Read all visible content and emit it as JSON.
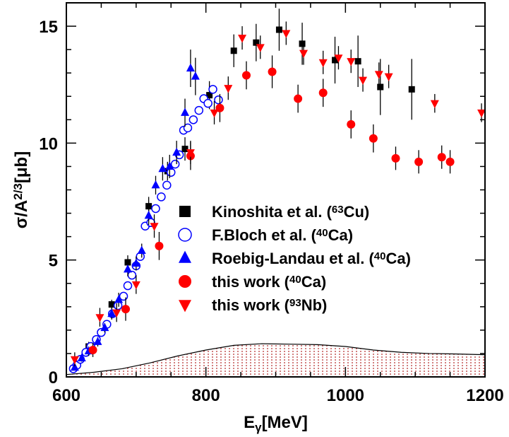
{
  "chart_data": {
    "type": "scatter",
    "title": "",
    "xlabel": "E",
    "xlabel_sub": "γ",
    "xlabel_unit": "[MeV]",
    "ylabel": "σ/A",
    "ylabel_sup": "2/3",
    "ylabel_unit": "[μb]",
    "xlim": [
      600,
      1200
    ],
    "ylim": [
      0,
      16
    ],
    "x_ticks": [
      600,
      800,
      1000,
      1200
    ],
    "y_ticks": [
      0,
      5,
      10,
      15
    ],
    "x_tick_labels": [
      "600",
      "800",
      "1000",
      "1200"
    ],
    "y_tick_labels": [
      "0",
      "5",
      "10",
      "15"
    ],
    "grid": false,
    "legend_position": "center-right",
    "series": [
      {
        "name": "Kinoshita et al. (63Cu)",
        "legend_prefix": "Kinoshita et al. (",
        "legend_sup": "63",
        "legend_suffix": "Cu)",
        "marker": "square-filled",
        "color": "#000000",
        "points": [
          [
            632,
            1.3,
            0.2
          ],
          [
            665,
            3.1,
            0.2
          ],
          [
            688,
            4.9,
            0.3
          ],
          [
            718,
            7.3,
            0.4
          ],
          [
            745,
            8.8,
            0.4
          ],
          [
            770,
            9.75,
            0.5
          ],
          [
            805,
            12.05,
            0.6
          ],
          [
            840,
            13.95,
            0.7
          ],
          [
            872,
            14.3,
            0.8
          ],
          [
            905,
            14.85,
            0.9
          ],
          [
            938,
            14.25,
            0.9
          ],
          [
            985,
            13.55,
            1.0
          ],
          [
            1018,
            13.5,
            1.1
          ],
          [
            1050,
            12.4,
            1.2
          ],
          [
            1095,
            12.3,
            1.3
          ]
        ]
      },
      {
        "name": "F.Bloch et al. (40Ca)",
        "legend_prefix": "F.Bloch et al. (",
        "legend_sup": "40",
        "legend_suffix": "Ca)",
        "marker": "circle-open",
        "color": "#0000ff",
        "points": [
          [
            610,
            0.35,
            0
          ],
          [
            615,
            0.5,
            0
          ],
          [
            620,
            0.75,
            0
          ],
          [
            628,
            1.05,
            0
          ],
          [
            635,
            1.3,
            0
          ],
          [
            643,
            1.6,
            0
          ],
          [
            650,
            1.9,
            0
          ],
          [
            658,
            2.25,
            0
          ],
          [
            666,
            2.7,
            0
          ],
          [
            674,
            3.05,
            0
          ],
          [
            682,
            3.45,
            0
          ],
          [
            688,
            3.9,
            0
          ],
          [
            694,
            4.35,
            0
          ],
          [
            700,
            4.75,
            0
          ],
          [
            706,
            5.15,
            0
          ],
          [
            713,
            6.45,
            0
          ],
          [
            721,
            6.6,
            0
          ],
          [
            728,
            7.2,
            0
          ],
          [
            736,
            7.7,
            0
          ],
          [
            744,
            8.2,
            0
          ],
          [
            750,
            8.75,
            0
          ],
          [
            756,
            9.1,
            0
          ],
          [
            762,
            9.5,
            0
          ],
          [
            768,
            10.55,
            0
          ],
          [
            774,
            10.65,
            0
          ],
          [
            782,
            11.0,
            0
          ],
          [
            790,
            11.4,
            0
          ],
          [
            797,
            11.9,
            0
          ],
          [
            803,
            11.7,
            0
          ],
          [
            810,
            12.3,
            0
          ],
          [
            818,
            11.85,
            0
          ]
        ]
      },
      {
        "name": "Roebig-Landau et al. (40Ca)",
        "legend_prefix": "Roebig-Landau et al. (",
        "legend_sup": "40",
        "legend_suffix": "Ca)",
        "marker": "triangle-up-filled",
        "color": "#0000ff",
        "points": [
          [
            612,
            0.4,
            0.1
          ],
          [
            622,
            0.8,
            0.15
          ],
          [
            632,
            1.1,
            0.2
          ],
          [
            645,
            1.5,
            0.2
          ],
          [
            655,
            2.1,
            0.2
          ],
          [
            665,
            2.7,
            0.25
          ],
          [
            675,
            3.3,
            0.3
          ],
          [
            688,
            4.6,
            0.3
          ],
          [
            700,
            4.85,
            0.3
          ],
          [
            708,
            5.4,
            0.3
          ],
          [
            718,
            6.9,
            0.4
          ],
          [
            728,
            8.2,
            0.4
          ],
          [
            738,
            8.9,
            0.5
          ],
          [
            748,
            9.0,
            0.5
          ],
          [
            758,
            9.6,
            0.5
          ],
          [
            770,
            11.3,
            0.6
          ],
          [
            778,
            13.2,
            0.8
          ],
          [
            785,
            12.85,
            0.8
          ]
        ]
      },
      {
        "name": "this work (40Ca)",
        "legend_prefix": "this work (",
        "legend_sup": "40",
        "legend_suffix": "Ca)",
        "marker": "circle-filled",
        "color": "#ff0000",
        "points": [
          [
            638,
            1.15,
            0.3
          ],
          [
            685,
            2.9,
            0.5
          ],
          [
            733,
            5.6,
            0.6
          ],
          [
            778,
            9.45,
            0.6
          ],
          [
            820,
            11.5,
            0.6
          ],
          [
            858,
            12.9,
            0.6
          ],
          [
            895,
            13.05,
            0.7
          ],
          [
            932,
            11.9,
            0.6
          ],
          [
            968,
            12.15,
            0.6
          ],
          [
            1008,
            10.8,
            0.6
          ],
          [
            1040,
            10.2,
            0.6
          ],
          [
            1072,
            9.35,
            0.5
          ],
          [
            1105,
            9.2,
            0.5
          ],
          [
            1138,
            9.4,
            0.5
          ],
          [
            1150,
            9.2,
            0.5
          ]
        ]
      },
      {
        "name": "this work (93Nb)",
        "legend_prefix": "this work (",
        "legend_sup": "93",
        "legend_suffix": "Nb)",
        "marker": "triangle-down-filled",
        "color": "#ff0000",
        "points": [
          [
            612,
            0.75,
            0.3
          ],
          [
            648,
            2.55,
            0.4
          ],
          [
            672,
            2.75,
            0.4
          ],
          [
            700,
            3.95,
            0.4
          ],
          [
            726,
            6.45,
            0.5
          ],
          [
            778,
            9.6,
            0.5
          ],
          [
            812,
            11.3,
            0.5
          ],
          [
            832,
            12.35,
            0.5
          ],
          [
            852,
            14.5,
            0.5
          ],
          [
            878,
            14.1,
            0.5
          ],
          [
            915,
            14.7,
            0.5
          ],
          [
            940,
            13.85,
            0.5
          ],
          [
            968,
            13.45,
            0.5
          ],
          [
            990,
            13.65,
            0.5
          ],
          [
            1008,
            13.5,
            0.5
          ],
          [
            1025,
            12.7,
            0.5
          ],
          [
            1048,
            12.95,
            0.5
          ],
          [
            1062,
            12.85,
            0.5
          ],
          [
            1128,
            11.7,
            0.4
          ],
          [
            1195,
            11.3,
            0.4
          ]
        ]
      }
    ],
    "systematic_band": {
      "color": "#b22222",
      "pattern": "dotted",
      "x": [
        600,
        640,
        680,
        720,
        760,
        800,
        840,
        880,
        920,
        960,
        1000,
        1040,
        1080,
        1120,
        1160,
        1200
      ],
      "upper": [
        0.1,
        0.2,
        0.35,
        0.6,
        0.9,
        1.15,
        1.35,
        1.42,
        1.4,
        1.38,
        1.3,
        1.15,
        1.05,
        1.0,
        0.98,
        0.95
      ]
    }
  }
}
